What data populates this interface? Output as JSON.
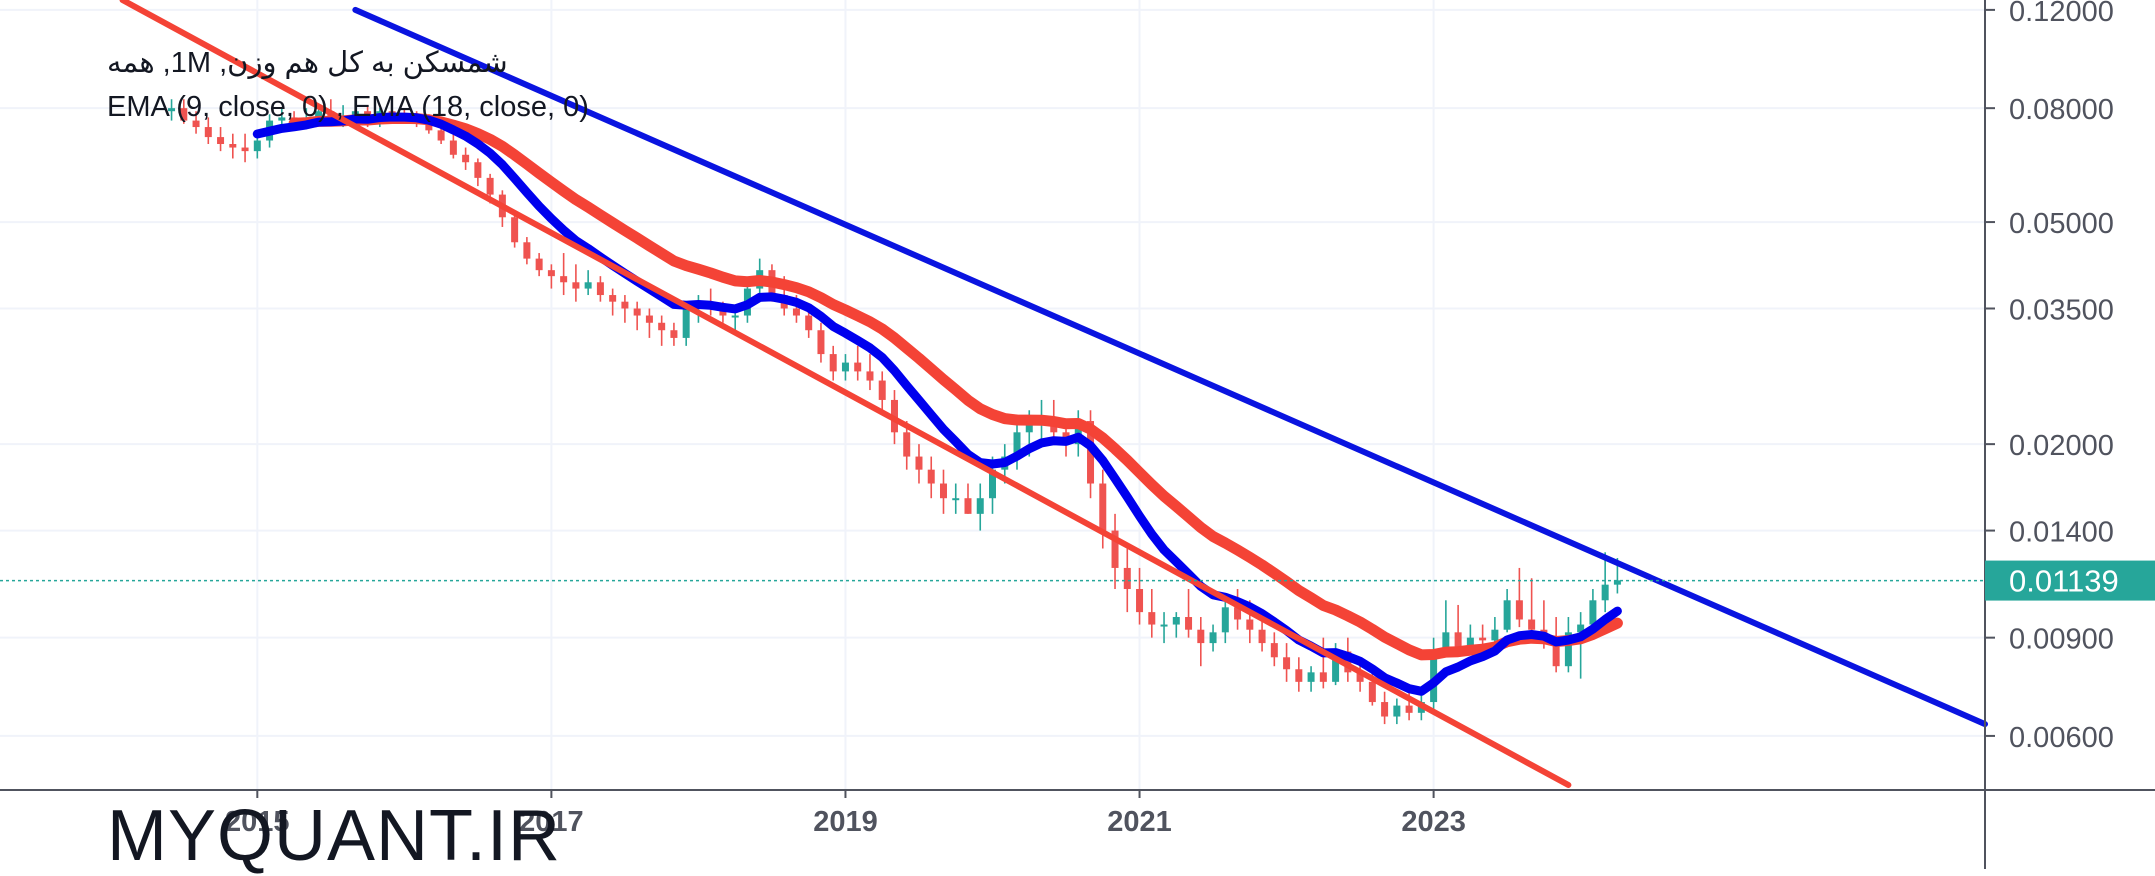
{
  "legend": {
    "title": "شمسکن به کل هم وزن, 1M, همه",
    "indicators": "EMA (9, close, 0) , EMA (18, close, 0)"
  },
  "watermark": "MYQUANT.IR",
  "colors": {
    "background": "#ffffff",
    "up": "#26a69a",
    "down": "#ef5350",
    "ema_fast": "#0000ee",
    "ema_slow": "#f44336",
    "trend_upper": "#0a14e0",
    "trend_lower": "#f44336",
    "last_price": "#26a69a",
    "axis_text": "#50535e",
    "grid": "#f0f3fa"
  },
  "chart_data": {
    "type": "candlestick",
    "scale": "log",
    "y_ticks": [
      "0.12000",
      "0.08000",
      "0.05000",
      "0.03500",
      "0.02000",
      "0.01400",
      "0.00900",
      "0.00600"
    ],
    "x_ticks": [
      "2015",
      "2017",
      "2019",
      "2021",
      "2023"
    ],
    "ylim": [
      0.0048,
      0.125
    ],
    "xlim": [
      "2013-04",
      "2026-10"
    ],
    "grid": true,
    "last_price": "0.01139",
    "x": [
      "2014-06",
      "2014-07",
      "2014-08",
      "2014-09",
      "2014-10",
      "2014-11",
      "2014-12",
      "2015-01",
      "2015-02",
      "2015-03",
      "2015-04",
      "2015-05",
      "2015-06",
      "2015-07",
      "2015-08",
      "2015-09",
      "2015-10",
      "2015-11",
      "2015-12",
      "2016-01",
      "2016-02",
      "2016-03",
      "2016-04",
      "2016-05",
      "2016-06",
      "2016-07",
      "2016-08",
      "2016-09",
      "2016-10",
      "2016-11",
      "2016-12",
      "2017-01",
      "2017-02",
      "2017-03",
      "2017-04",
      "2017-05",
      "2017-06",
      "2017-07",
      "2017-08",
      "2017-09",
      "2017-10",
      "2017-11",
      "2017-12",
      "2018-01",
      "2018-02",
      "2018-03",
      "2018-04",
      "2018-05",
      "2018-06",
      "2018-07",
      "2018-08",
      "2018-09",
      "2018-10",
      "2018-11",
      "2018-12",
      "2019-01",
      "2019-02",
      "2019-03",
      "2019-04",
      "2019-05",
      "2019-06",
      "2019-07",
      "2019-08",
      "2019-09",
      "2019-10",
      "2019-11",
      "2019-12",
      "2020-01",
      "2020-02",
      "2020-03",
      "2020-04",
      "2020-05",
      "2020-06",
      "2020-07",
      "2020-08",
      "2020-09",
      "2020-10",
      "2020-11",
      "2020-12",
      "2021-01",
      "2021-02",
      "2021-03",
      "2021-04",
      "2021-05",
      "2021-06",
      "2021-07",
      "2021-08",
      "2021-09",
      "2021-10",
      "2021-11",
      "2021-12",
      "2022-01",
      "2022-02",
      "2022-03",
      "2022-04",
      "2022-05",
      "2022-06",
      "2022-07",
      "2022-08",
      "2022-09",
      "2022-10",
      "2022-11",
      "2022-12",
      "2023-01",
      "2023-02",
      "2023-03",
      "2023-04",
      "2023-05",
      "2023-06",
      "2023-07",
      "2023-08",
      "2023-09",
      "2023-10",
      "2023-11",
      "2023-12",
      "2024-01",
      "2024-02",
      "2024-03",
      "2024-04"
    ],
    "open": [
      0.079,
      0.08,
      0.076,
      0.074,
      0.071,
      0.069,
      0.068,
      0.067,
      0.07,
      0.076,
      0.077,
      0.076,
      0.077,
      0.079,
      0.076,
      0.077,
      0.079,
      0.076,
      0.079,
      0.078,
      0.077,
      0.076,
      0.073,
      0.07,
      0.066,
      0.064,
      0.06,
      0.056,
      0.051,
      0.046,
      0.043,
      0.041,
      0.04,
      0.039,
      0.038,
      0.039,
      0.037,
      0.036,
      0.035,
      0.034,
      0.033,
      0.032,
      0.031,
      0.035,
      0.036,
      0.035,
      0.034,
      0.034,
      0.038,
      0.041,
      0.037,
      0.035,
      0.034,
      0.032,
      0.029,
      0.027,
      0.028,
      0.027,
      0.026,
      0.024,
      0.021,
      0.019,
      0.018,
      0.017,
      0.016,
      0.016,
      0.015,
      0.016,
      0.018,
      0.019,
      0.021,
      0.022,
      0.022,
      0.021,
      0.02,
      0.022,
      0.017,
      0.014,
      0.012,
      0.011,
      0.01,
      0.0095,
      0.0095,
      0.0098,
      0.0093,
      0.0088,
      0.0092,
      0.0102,
      0.0097,
      0.0093,
      0.0088,
      0.0083,
      0.0079,
      0.0075,
      0.0078,
      0.0075,
      0.0085,
      0.0078,
      0.0075,
      0.0069,
      0.0065,
      0.0068,
      0.0066,
      0.0069,
      0.0085,
      0.0092,
      0.0086,
      0.009,
      0.0089,
      0.0093,
      0.0105,
      0.0097,
      0.0093,
      0.0088,
      0.008,
      0.0092,
      0.0095,
      0.0105,
      0.0112
    ],
    "high": [
      0.083,
      0.083,
      0.079,
      0.077,
      0.074,
      0.072,
      0.072,
      0.072,
      0.078,
      0.08,
      0.079,
      0.08,
      0.081,
      0.083,
      0.081,
      0.08,
      0.081,
      0.08,
      0.081,
      0.08,
      0.079,
      0.078,
      0.075,
      0.072,
      0.068,
      0.065,
      0.061,
      0.057,
      0.052,
      0.047,
      0.044,
      0.042,
      0.044,
      0.042,
      0.041,
      0.04,
      0.038,
      0.037,
      0.036,
      0.035,
      0.034,
      0.033,
      0.036,
      0.037,
      0.038,
      0.036,
      0.035,
      0.039,
      0.043,
      0.042,
      0.04,
      0.037,
      0.035,
      0.033,
      0.03,
      0.029,
      0.03,
      0.029,
      0.027,
      0.025,
      0.022,
      0.02,
      0.019,
      0.018,
      0.017,
      0.017,
      0.017,
      0.019,
      0.02,
      0.022,
      0.023,
      0.024,
      0.024,
      0.022,
      0.023,
      0.023,
      0.018,
      0.015,
      0.013,
      0.012,
      0.011,
      0.01,
      0.01,
      0.011,
      0.0098,
      0.0095,
      0.0105,
      0.011,
      0.0105,
      0.0098,
      0.0092,
      0.0088,
      0.0083,
      0.008,
      0.009,
      0.0088,
      0.009,
      0.0082,
      0.008,
      0.0072,
      0.007,
      0.0072,
      0.0072,
      0.009,
      0.0105,
      0.0103,
      0.0095,
      0.0095,
      0.0098,
      0.011,
      0.012,
      0.0115,
      0.0105,
      0.0098,
      0.0098,
      0.01,
      0.011,
      0.0128,
      0.0125
    ],
    "low": [
      0.076,
      0.075,
      0.072,
      0.069,
      0.067,
      0.065,
      0.064,
      0.065,
      0.068,
      0.074,
      0.074,
      0.074,
      0.075,
      0.075,
      0.074,
      0.075,
      0.074,
      0.074,
      0.075,
      0.075,
      0.074,
      0.072,
      0.069,
      0.065,
      0.062,
      0.058,
      0.054,
      0.049,
      0.045,
      0.042,
      0.04,
      0.038,
      0.037,
      0.036,
      0.037,
      0.036,
      0.034,
      0.033,
      0.032,
      0.031,
      0.03,
      0.03,
      0.03,
      0.033,
      0.034,
      0.033,
      0.032,
      0.033,
      0.036,
      0.036,
      0.034,
      0.033,
      0.031,
      0.028,
      0.026,
      0.026,
      0.026,
      0.025,
      0.023,
      0.02,
      0.018,
      0.017,
      0.016,
      0.015,
      0.015,
      0.015,
      0.014,
      0.015,
      0.017,
      0.018,
      0.019,
      0.02,
      0.02,
      0.019,
      0.019,
      0.016,
      0.013,
      0.011,
      0.01,
      0.0095,
      0.009,
      0.0088,
      0.009,
      0.009,
      0.008,
      0.0085,
      0.0088,
      0.0093,
      0.0088,
      0.0085,
      0.008,
      0.0075,
      0.0072,
      0.0072,
      0.0073,
      0.0074,
      0.0075,
      0.0072,
      0.0068,
      0.0063,
      0.0063,
      0.0064,
      0.0064,
      0.0067,
      0.0083,
      0.0085,
      0.0085,
      0.0086,
      0.0087,
      0.0092,
      0.0094,
      0.0092,
      0.0086,
      0.0078,
      0.0078,
      0.0076,
      0.0092,
      0.01,
      0.0108
    ],
    "close": [
      0.08,
      0.076,
      0.074,
      0.071,
      0.069,
      0.068,
      0.067,
      0.07,
      0.076,
      0.077,
      0.076,
      0.077,
      0.079,
      0.076,
      0.077,
      0.079,
      0.076,
      0.079,
      0.078,
      0.077,
      0.076,
      0.073,
      0.07,
      0.066,
      0.064,
      0.06,
      0.056,
      0.051,
      0.046,
      0.043,
      0.041,
      0.04,
      0.039,
      0.038,
      0.039,
      0.037,
      0.036,
      0.035,
      0.034,
      0.033,
      0.032,
      0.031,
      0.035,
      0.036,
      0.035,
      0.034,
      0.034,
      0.038,
      0.041,
      0.037,
      0.035,
      0.034,
      0.032,
      0.029,
      0.027,
      0.028,
      0.027,
      0.026,
      0.024,
      0.021,
      0.019,
      0.018,
      0.017,
      0.016,
      0.016,
      0.015,
      0.016,
      0.018,
      0.019,
      0.021,
      0.022,
      0.022,
      0.021,
      0.02,
      0.022,
      0.017,
      0.014,
      0.012,
      0.011,
      0.01,
      0.0095,
      0.0095,
      0.0098,
      0.0093,
      0.0088,
      0.0092,
      0.0102,
      0.0097,
      0.0093,
      0.0088,
      0.0083,
      0.0079,
      0.0075,
      0.0078,
      0.0075,
      0.0085,
      0.0078,
      0.0075,
      0.0069,
      0.0065,
      0.0068,
      0.0066,
      0.0069,
      0.0085,
      0.0092,
      0.0086,
      0.009,
      0.0089,
      0.0093,
      0.0105,
      0.0097,
      0.0093,
      0.0088,
      0.008,
      0.0092,
      0.0095,
      0.0105,
      0.0112,
      0.0114
    ],
    "trend_lines": [
      {
        "name": "upper",
        "points": [
          [
            "2015-09",
            0.12
          ],
          [
            "2026-10",
            0.0063
          ]
        ]
      },
      {
        "name": "lower",
        "points": [
          [
            "2014-02",
            0.125
          ],
          [
            "2023-12",
            0.0049
          ]
        ]
      }
    ]
  }
}
